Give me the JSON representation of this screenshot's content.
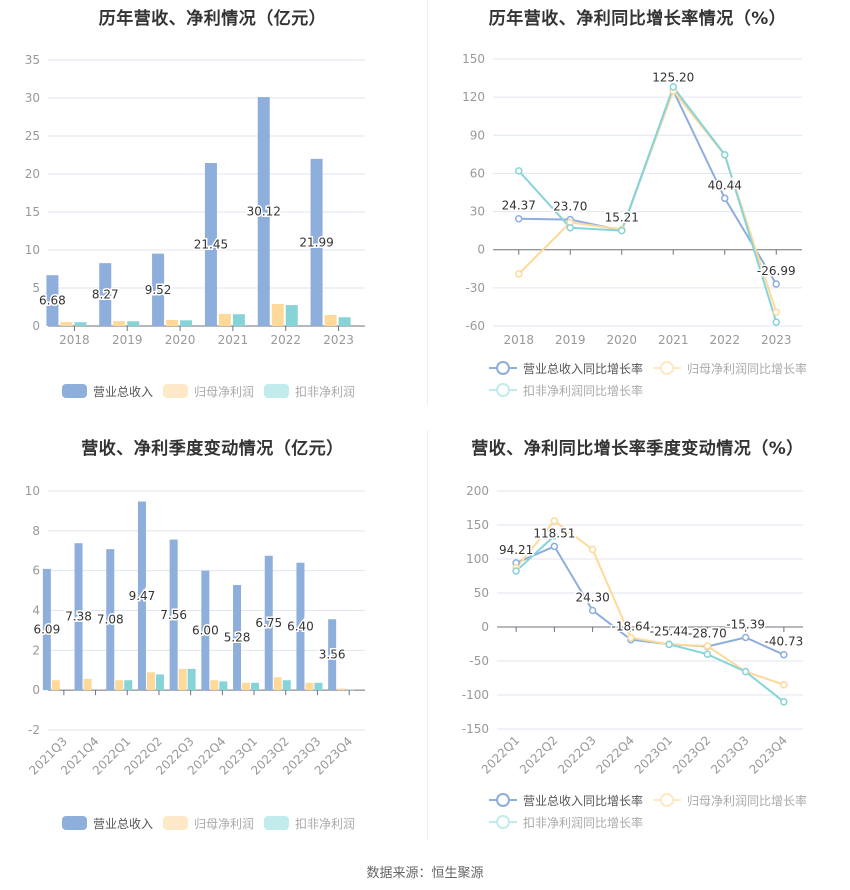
{
  "colors": {
    "revenue": "#8eaedb",
    "net_profit": "#ffd999",
    "deducted_profit": "#86d4d8",
    "revenue_legend": "#8eaedb",
    "net_profit_legend_dim": "#fde9c8",
    "deducted_profit_legend_dim": "#c2ecec",
    "grid": "#e0e6f1",
    "axis": "#6e7079",
    "tick_label": "#999999",
    "data_label": "#333333"
  },
  "source_text": "数据来源：恒生聚源",
  "panels": {
    "annual_bar": {
      "title": "历年营收、净利情况（亿元）",
      "legend": [
        "营业总收入",
        "归母净利润",
        "扣非净利润"
      ]
    },
    "annual_line": {
      "title": "历年营收、净利同比增长率情况（%）",
      "legend": [
        "营业总收入同比增长率",
        "归母净利润同比增长率",
        "扣非净利润同比增长率"
      ]
    },
    "quarter_bar": {
      "title": "营收、净利季度变动情况（亿元）",
      "legend": [
        "营业总收入",
        "归母净利润",
        "扣非净利润"
      ]
    },
    "quarter_line": {
      "title": "营收、净利同比增长率季度变动情况（%）",
      "legend": [
        "营业总收入同比增长率",
        "归母净利润同比增长率",
        "扣非净利润同比增长率"
      ]
    }
  },
  "chart_data": [
    {
      "type": "bar",
      "title": "历年营收、净利情况（亿元）",
      "categories": [
        "2018",
        "2019",
        "2020",
        "2021",
        "2022",
        "2023"
      ],
      "series": [
        {
          "name": "营业总收入",
          "values": [
            6.68,
            8.27,
            9.52,
            21.45,
            30.12,
            21.99
          ],
          "labels": [
            "6.68",
            "8.27",
            "9.52",
            "21.45",
            "30.12",
            "21.99"
          ]
        },
        {
          "name": "归母净利润",
          "values": [
            0.5,
            0.65,
            0.8,
            1.6,
            2.9,
            1.45
          ]
        },
        {
          "name": "扣非净利润",
          "values": [
            0.5,
            0.62,
            0.75,
            1.55,
            2.75,
            1.15
          ]
        }
      ],
      "yticks": [
        0,
        5,
        10,
        15,
        20,
        25,
        30,
        35
      ],
      "ylim": [
        0,
        35
      ],
      "xlabel": "",
      "ylabel": "",
      "grid": true,
      "legend_position": "bottom"
    },
    {
      "type": "line",
      "title": "历年营收、净利同比增长率情况（%）",
      "categories": [
        "2018",
        "2019",
        "2020",
        "2021",
        "2022",
        "2023"
      ],
      "series": [
        {
          "name": "营业总收入同比增长率",
          "values": [
            24.37,
            23.7,
            15.21,
            125.2,
            40.44,
            -26.99
          ],
          "labels": [
            "24.37",
            "23.70",
            "15.21",
            "125.20",
            "40.44",
            "-26.99"
          ]
        },
        {
          "name": "归母净利润同比增长率",
          "values": [
            -19,
            21.5,
            16,
            125,
            74.5,
            -49
          ]
        },
        {
          "name": "扣非净利润同比增长率",
          "values": [
            62,
            17.3,
            15,
            128,
            74.7,
            -57
          ]
        }
      ],
      "yticks": [
        -60,
        -30,
        0,
        30,
        60,
        90,
        120,
        150
      ],
      "ylim": [
        -60,
        150
      ],
      "xlabel": "",
      "ylabel": "",
      "grid": true,
      "legend_position": "bottom"
    },
    {
      "type": "bar",
      "title": "营收、净利季度变动情况（亿元）",
      "categories": [
        "2021Q3",
        "2021Q4",
        "2022Q1",
        "2022Q2",
        "2022Q3",
        "2022Q4",
        "2023Q1",
        "2023Q2",
        "2023Q3",
        "2023Q4"
      ],
      "series": [
        {
          "name": "营业总收入",
          "values": [
            6.09,
            7.38,
            7.08,
            9.47,
            7.56,
            6.0,
            5.28,
            6.75,
            6.4,
            3.56
          ],
          "labels": [
            "6.09",
            "7.38",
            "7.08",
            "9.47",
            "7.56",
            "6.00",
            "5.28",
            "6.75",
            "6.40",
            "3.56"
          ]
        },
        {
          "name": "归母净利润",
          "values": [
            0.5,
            0.57,
            0.5,
            0.9,
            1.07,
            0.5,
            0.37,
            0.65,
            0.37,
            0.08
          ]
        },
        {
          "name": "扣非净利润",
          "values": [
            null,
            null,
            0.5,
            0.79,
            1.07,
            0.44,
            0.37,
            0.5,
            0.37,
            0.02
          ]
        }
      ],
      "yticks": [
        -2,
        0,
        2,
        4,
        6,
        8,
        10
      ],
      "ylim": [
        -2,
        10
      ],
      "xlabel": "",
      "ylabel": "",
      "grid": true,
      "legend_position": "bottom"
    },
    {
      "type": "line",
      "title": "营收、净利同比增长率季度变动情况（%）",
      "categories": [
        "2022Q1",
        "2022Q2",
        "2022Q3",
        "2022Q4",
        "2023Q1",
        "2023Q2",
        "2023Q3",
        "2023Q4"
      ],
      "series": [
        {
          "name": "营业总收入同比增长率",
          "values": [
            94.21,
            118.51,
            24.3,
            -18.64,
            -25.44,
            -28.7,
            -15.39,
            -40.73
          ],
          "labels": [
            "94.21",
            "118.51",
            "24.30",
            "-18.64",
            "-25.44",
            "-28.70",
            "-15.39",
            "-40.73"
          ]
        },
        {
          "name": "归母净利润同比增长率",
          "values": [
            87,
            156,
            114,
            -15.7,
            -25.5,
            -28,
            -65.5,
            -85
          ]
        },
        {
          "name": "扣非净利润同比增长率",
          "values": [
            82.4,
            134,
            null,
            null,
            -25.5,
            -40,
            -65.7,
            -110
          ]
        }
      ],
      "yticks": [
        -150,
        -100,
        -50,
        0,
        50,
        100,
        150,
        200
      ],
      "ylim": [
        -150,
        200
      ],
      "xlabel": "",
      "ylabel": "",
      "grid": true,
      "legend_position": "bottom"
    }
  ]
}
